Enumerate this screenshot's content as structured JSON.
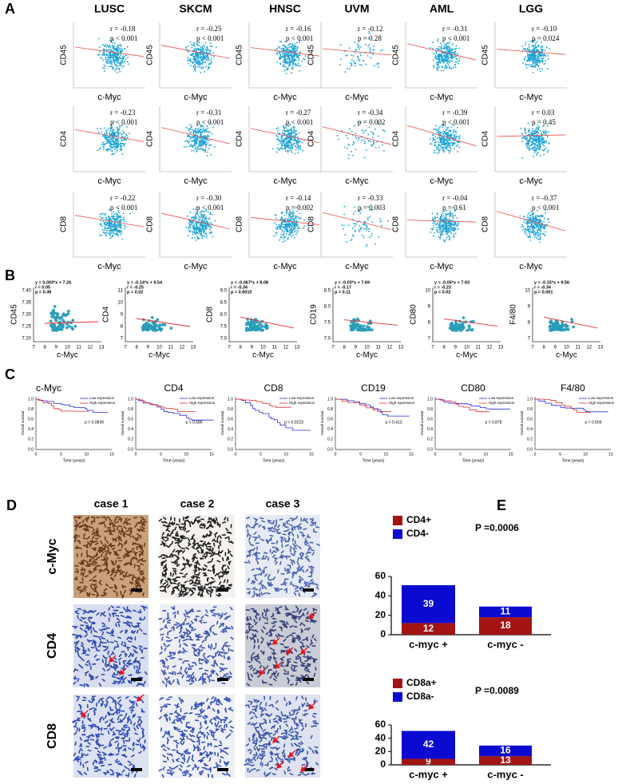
{
  "panel_a": {
    "label": "A",
    "columns": [
      "LUSC",
      "SKCM",
      "HNSC",
      "UVM",
      "AML",
      "LGG"
    ],
    "rows": [
      "CD45",
      "CD4",
      "CD8"
    ],
    "x_label": "c-Myc",
    "stats": [
      [
        {
          "r": "r = -0.18",
          "p": "p < 0.001"
        },
        {
          "r": "r = -0.25",
          "p": "p < 0.001"
        },
        {
          "r": "r = -0.16",
          "p": "p < 0.001"
        },
        {
          "r": "r = -0.12",
          "p": "p = 0.28"
        },
        {
          "r": "r = -0.31",
          "p": "p < 0.001"
        },
        {
          "r": "r = -0.10",
          "p": "p = 0.024"
        }
      ],
      [
        {
          "r": "r = -0.23",
          "p": "p < 0.001"
        },
        {
          "r": "r = -0.31",
          "p": "p < 0.001"
        },
        {
          "r": "r = -0.27",
          "p": "p < 0.001"
        },
        {
          "r": "r = -0.34",
          "p": "p = 0.002"
        },
        {
          "r": "r = -0.39",
          "p": "p < 0.001"
        },
        {
          "r": "r = 0.03",
          "p": "p = 0.45"
        }
      ],
      [
        {
          "r": "r = -0.22",
          "p": "p < 0.001"
        },
        {
          "r": "r = -0.30",
          "p": "p < 0.001"
        },
        {
          "r": "r = -0.14",
          "p": "p = 0.002"
        },
        {
          "r": "r = -0.33",
          "p": "p = 0.003"
        },
        {
          "r": "r = -0.04",
          "p": "p = 0.61"
        },
        {
          "r": "r = -0.37",
          "p": "p < 0.001"
        }
      ]
    ]
  },
  "panel_b": {
    "label": "B",
    "x_label": "c-Myc",
    "xticks": [
      7,
      8,
      9,
      10,
      11,
      12,
      13
    ],
    "plots": [
      {
        "y_label": "CD45",
        "equation": "y = 0.003*x + 7.26",
        "r": "r = 0.05",
        "p": "p = 0.49",
        "yticks": [
          "7.20",
          "7.25",
          "7.30",
          "7.35",
          "7.40"
        ]
      },
      {
        "y_label": "CD4",
        "equation": "y = -0.14*x + 9.54",
        "r": "r = -0.25",
        "p": "p = 0.02",
        "yticks": [
          7,
          8,
          9,
          10,
          11
        ]
      },
      {
        "y_label": "CD8",
        "equation": "y = -0.067*x + 8.08",
        "r": "r = -0.34",
        "p": "p = 0.0010",
        "yticks": [
          "7.0",
          "7.5",
          "8.0",
          "8.5",
          "9.0"
        ]
      },
      {
        "y_label": "CD19",
        "equation": "y = -0.03*x + 7.69",
        "r": "r = -0.17",
        "p": "p = 0.11",
        "yticks": [
          "7.0",
          "7.5",
          "8.0",
          "8.5"
        ]
      },
      {
        "y_label": "CD80",
        "equation": "y = -0.05*x + 7.93",
        "r": "r = -0.23",
        "p": "p = 0.03",
        "yticks": [
          7,
          8,
          9,
          10
        ]
      },
      {
        "y_label": "F4/80",
        "equation": "y = -0.15*x + 9.56",
        "r": "r = -0.34",
        "p": "p = 0.001",
        "yticks": [
          7,
          8,
          9,
          10
        ]
      }
    ]
  },
  "panel_c": {
    "label": "C",
    "legend": [
      "Low expression",
      "High expression"
    ],
    "y_label": "Overall survival",
    "x_label": "Time (years)",
    "xticks": [
      0,
      5,
      10,
      15
    ],
    "yticks": [
      "0.0",
      "0.2",
      "0.4",
      "0.6",
      "0.8",
      "1.0"
    ],
    "plots": [
      {
        "title": "c-Myc",
        "p": "p = 0.0839"
      },
      {
        "title": "CD4",
        "p": "p = 0.586"
      },
      {
        "title": "CD8",
        "p": "p = 0.0223"
      },
      {
        "title": "CD19",
        "p": "p = 0.413"
      },
      {
        "title": "CD80",
        "p": "p = 0.878"
      },
      {
        "title": "F4/80",
        "p": "p = 0.509"
      }
    ]
  },
  "panel_d": {
    "label": "D",
    "cases": [
      "case 1",
      "case 2",
      "case 3"
    ],
    "rows": [
      "c-Myc",
      "CD4",
      "CD8"
    ]
  },
  "panel_e": {
    "label": "E"
  },
  "chart_data": [
    {
      "type": "bar",
      "stacked": true,
      "categories": [
        "c-myc +",
        "c-myc -"
      ],
      "series": [
        {
          "name": "CD4+",
          "color": "#a31414",
          "values": [
            12,
            18
          ]
        },
        {
          "name": "CD4-",
          "color": "#0a0ad0",
          "values": [
            39,
            11
          ]
        }
      ],
      "ylim": [
        0,
        60
      ],
      "yticks": [
        0,
        20,
        40,
        60
      ],
      "annotation": "P =0.0006"
    },
    {
      "type": "bar",
      "stacked": true,
      "categories": [
        "c-myc +",
        "c-myc -"
      ],
      "series": [
        {
          "name": "CD8a+",
          "color": "#a31414",
          "values": [
            9,
            13
          ]
        },
        {
          "name": "CD8a-",
          "color": "#0a0ad0",
          "values": [
            42,
            16
          ]
        }
      ],
      "ylim": [
        0,
        60
      ],
      "yticks": [
        0,
        20,
        40,
        60
      ],
      "annotation": "P =0.0089"
    }
  ]
}
